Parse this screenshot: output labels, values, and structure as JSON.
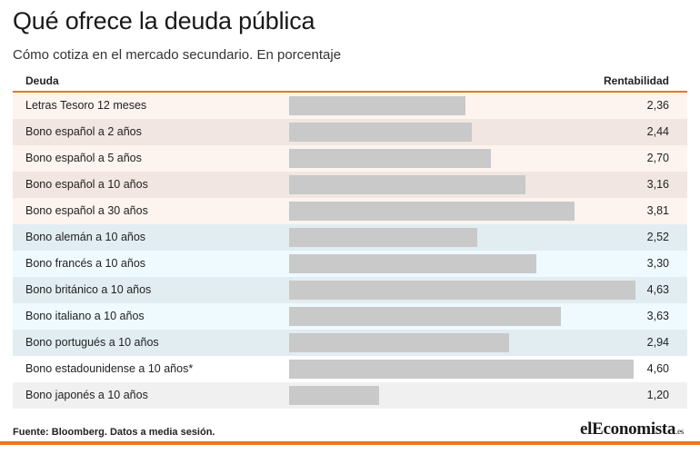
{
  "title": "Qué ofrece la deuda pública",
  "subtitle": "Cómo cotiza en el mercado secundario. En porcentaje",
  "header": {
    "left": "Deuda",
    "right": "Rentabilidad"
  },
  "source": "Fuente: Bloomberg. Datos a media sesión.",
  "logo": {
    "main": "elEconomista",
    "suffix": ".es"
  },
  "colors": {
    "accent": "#e87722",
    "bar": "#c9c9c9",
    "row_spain_light": "#fdf3ef",
    "row_spain_dark": "#f1e6e1",
    "row_europe_dark": "#e2edf1",
    "row_europe_light": "#eefaff",
    "row_other_light": "#ffffff",
    "row_other_dark": "#f0f0f0"
  },
  "chart_data": {
    "type": "bar",
    "orientation": "horizontal",
    "categories": [
      "Letras Tesoro 12 meses",
      "Bono español a 2 años",
      "Bono español a 5 años",
      "Bono español a 10 años",
      "Bono español a 30 años",
      "Bono alemán a 10 años",
      "Bono francés a 10 años",
      "Bono británico a 10 años",
      "Bono italiano a 10 años",
      "Bono portugués a 10 años",
      "Bono estadounidense a 10 años*",
      "Bono japonés a 10 años"
    ],
    "values": [
      2.36,
      2.44,
      2.7,
      3.16,
      3.81,
      2.52,
      3.3,
      4.63,
      3.63,
      2.94,
      4.6,
      1.2
    ],
    "value_labels": [
      "2,36",
      "2,44",
      "2,70",
      "3,16",
      "3,81",
      "2,52",
      "3,30",
      "4,63",
      "3,63",
      "2,94",
      "4,60",
      "1,20"
    ],
    "row_colors": [
      "#fdf3ef",
      "#f1e6e1",
      "#fdf3ef",
      "#f1e6e1",
      "#fdf3ef",
      "#e2edf1",
      "#eefaff",
      "#e2edf1",
      "#eefaff",
      "#e2edf1",
      "#ffffff",
      "#f0f0f0"
    ],
    "xlim": [
      0,
      4.63
    ],
    "grid": false,
    "legend": "none"
  }
}
